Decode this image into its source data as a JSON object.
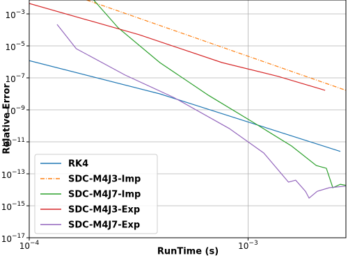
{
  "chart_data": {
    "type": "line",
    "x_label": "RunTime (s)",
    "y_label": "Relative Error",
    "log_x": true,
    "log_y": true,
    "grid": true,
    "legend": "lower left",
    "xlim": [
      0.0001,
      0.0028
    ],
    "ylim": [
      1e-17,
      0.0074
    ],
    "xticks": [
      {
        "value": 0.0001,
        "label": "10−4"
      },
      {
        "value": 0.001,
        "label": "10−3"
      }
    ],
    "yticks": [
      {
        "value": 1e-17,
        "label": "10−17"
      },
      {
        "value": 1e-15,
        "label": "10−15"
      },
      {
        "value": 1e-13,
        "label": "10−13"
      },
      {
        "value": 1e-11,
        "label": "10−11"
      },
      {
        "value": 1e-09,
        "label": "10−9"
      },
      {
        "value": 1e-07,
        "label": "10−7"
      },
      {
        "value": 1e-05,
        "label": "10−5"
      },
      {
        "value": 0.001,
        "label": "10−3"
      }
    ],
    "series": [
      {
        "name": "RK4",
        "color": "#1f77b4",
        "x": [
          0.0001,
          0.000395,
          0.00264
        ],
        "values": [
          1.2e-06,
          1e-08,
          2.5e-12
        ]
      },
      {
        "name": "SDC-M4J3-Imp",
        "color": "#ff7f0e",
        "x": [
          0.000183,
          0.0028
        ],
        "values": [
          0.0074,
          1.66e-08
        ]
      },
      {
        "name": "SDC-M4J7-Imp",
        "color": "#2ca02c",
        "x": [
          0.000197,
          0.000255,
          0.000395,
          0.00066,
          0.00102,
          0.00158,
          0.00205,
          0.00228,
          0.00244,
          0.00264,
          0.0028
        ],
        "values": [
          0.0074,
          0.000135,
          9e-07,
          8e-09,
          2.2e-10,
          5.5e-12,
          3.3e-13,
          2.2e-13,
          1.35e-14,
          2.2e-14,
          1.9e-14
        ]
      },
      {
        "name": "SDC-M4J3-Exp",
        "color": "#d62728",
        "x": [
          0.0001,
          0.000318,
          0.00076,
          0.00137,
          0.00225
        ],
        "values": [
          0.0045,
          5e-05,
          9e-07,
          1.25e-07,
          1.66e-08
        ]
      },
      {
        "name": "SDC-M4J7-Exp",
        "color": "#9467bd",
        "x": [
          0.000134,
          0.000164,
          0.000274,
          0.000457,
          0.00082,
          0.00118,
          0.00153,
          0.00165,
          0.00183,
          0.0019,
          0.00207,
          0.00235,
          0.0028
        ],
        "values": [
          0.00022,
          6.7e-06,
          1.5e-07,
          6e-09,
          6.8e-11,
          2e-12,
          3e-14,
          4e-14,
          8e-15,
          3e-15,
          8e-15,
          1.35e-14,
          1.7e-14
        ]
      }
    ]
  }
}
